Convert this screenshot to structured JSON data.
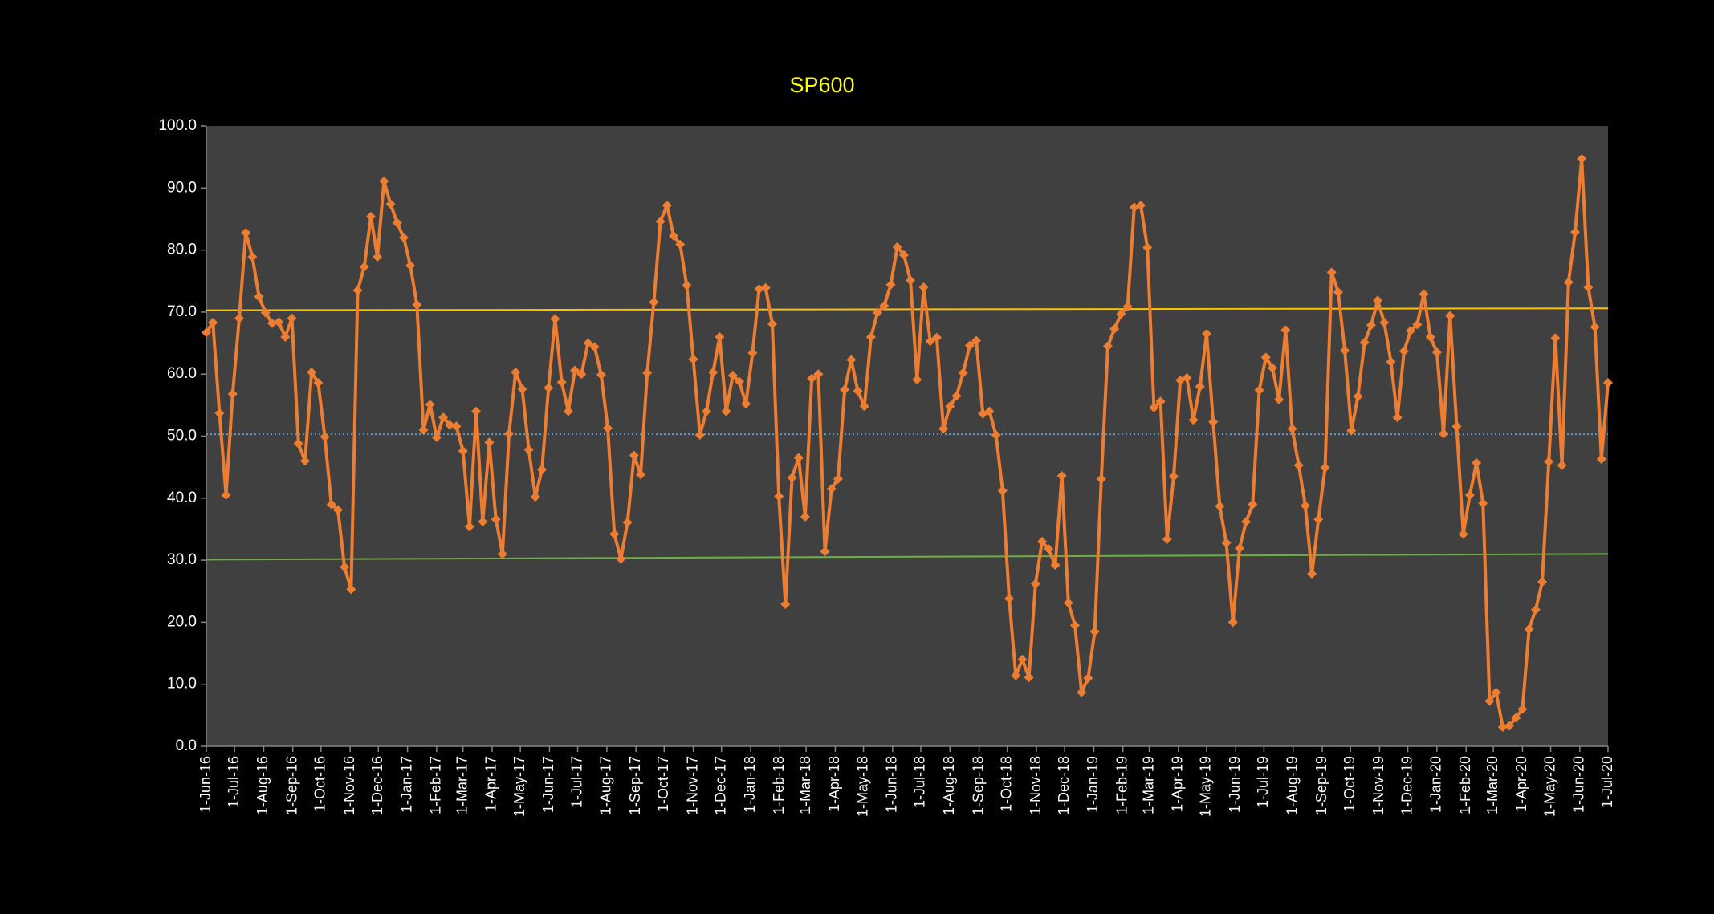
{
  "chart_data": {
    "type": "line",
    "title": "SP600",
    "title_color": "#ffff00",
    "background": "#404040",
    "x": [
      "2016-06-01",
      "2016-06-08",
      "2016-06-15",
      "2016-06-22",
      "2016-06-29",
      "2016-07-06",
      "2016-07-13",
      "2016-07-20",
      "2016-07-27",
      "2016-08-03",
      "2016-08-10",
      "2016-08-17",
      "2016-08-24",
      "2016-08-31",
      "2016-09-07",
      "2016-09-14",
      "2016-09-21",
      "2016-09-28",
      "2016-10-05",
      "2016-10-12",
      "2016-10-19",
      "2016-10-26",
      "2016-11-02",
      "2016-11-09",
      "2016-11-16",
      "2016-11-23",
      "2016-11-30",
      "2016-12-07",
      "2016-12-14",
      "2016-12-21",
      "2016-12-28",
      "2017-01-04",
      "2017-01-11",
      "2017-01-18",
      "2017-01-25",
      "2017-02-01",
      "2017-02-08",
      "2017-02-15",
      "2017-02-22",
      "2017-03-01",
      "2017-03-08",
      "2017-03-15",
      "2017-03-22",
      "2017-03-29",
      "2017-04-05",
      "2017-04-12",
      "2017-04-19",
      "2017-04-26",
      "2017-05-03",
      "2017-05-10",
      "2017-05-17",
      "2017-05-24",
      "2017-05-31",
      "2017-06-07",
      "2017-06-14",
      "2017-06-21",
      "2017-06-28",
      "2017-07-05",
      "2017-07-12",
      "2017-07-19",
      "2017-07-26",
      "2017-08-02",
      "2017-08-09",
      "2017-08-16",
      "2017-08-23",
      "2017-08-30",
      "2017-09-06",
      "2017-09-13",
      "2017-09-20",
      "2017-09-27",
      "2017-10-04",
      "2017-10-11",
      "2017-10-18",
      "2017-10-25",
      "2017-11-01",
      "2017-11-08",
      "2017-11-15",
      "2017-11-22",
      "2017-11-29",
      "2017-12-06",
      "2017-12-13",
      "2017-12-20",
      "2017-12-27",
      "2018-01-03",
      "2018-01-10",
      "2018-01-17",
      "2018-01-24",
      "2018-01-31",
      "2018-02-07",
      "2018-02-14",
      "2018-02-21",
      "2018-02-28",
      "2018-03-07",
      "2018-03-14",
      "2018-03-21",
      "2018-03-28",
      "2018-04-04",
      "2018-04-11",
      "2018-04-18",
      "2018-04-25",
      "2018-05-02",
      "2018-05-09",
      "2018-05-16",
      "2018-05-23",
      "2018-05-30",
      "2018-06-06",
      "2018-06-13",
      "2018-06-20",
      "2018-06-27",
      "2018-07-04",
      "2018-07-11",
      "2018-07-18",
      "2018-07-25",
      "2018-08-01",
      "2018-08-08",
      "2018-08-15",
      "2018-08-22",
      "2018-08-29",
      "2018-09-05",
      "2018-09-12",
      "2018-09-19",
      "2018-09-26",
      "2018-10-03",
      "2018-10-10",
      "2018-10-17",
      "2018-10-24",
      "2018-10-31",
      "2018-11-07",
      "2018-11-14",
      "2018-11-21",
      "2018-11-28",
      "2018-12-05",
      "2018-12-12",
      "2018-12-19",
      "2018-12-26",
      "2019-01-02",
      "2019-01-09",
      "2019-01-16",
      "2019-01-23",
      "2019-01-30",
      "2019-02-06",
      "2019-02-13",
      "2019-02-20",
      "2019-02-27",
      "2019-03-06",
      "2019-03-13",
      "2019-03-20",
      "2019-03-27",
      "2019-04-03",
      "2019-04-10",
      "2019-04-17",
      "2019-04-24",
      "2019-05-01",
      "2019-05-08",
      "2019-05-15",
      "2019-05-22",
      "2019-05-29",
      "2019-06-05",
      "2019-06-12",
      "2019-06-19",
      "2019-06-26",
      "2019-07-03",
      "2019-07-10",
      "2019-07-17",
      "2019-07-24",
      "2019-07-31",
      "2019-08-07",
      "2019-08-14",
      "2019-08-21",
      "2019-08-28",
      "2019-09-04",
      "2019-09-11",
      "2019-09-18",
      "2019-09-25",
      "2019-10-02",
      "2019-10-09",
      "2019-10-16",
      "2019-10-23",
      "2019-10-30",
      "2019-11-06",
      "2019-11-13",
      "2019-11-20",
      "2019-11-27",
      "2019-12-04",
      "2019-12-11",
      "2019-12-18",
      "2019-12-25",
      "2020-01-01",
      "2020-01-08",
      "2020-01-15",
      "2020-01-22",
      "2020-01-29",
      "2020-02-05",
      "2020-02-12",
      "2020-02-19",
      "2020-02-26",
      "2020-03-04",
      "2020-03-11",
      "2020-03-18",
      "2020-03-25",
      "2020-04-01",
      "2020-04-08",
      "2020-04-15",
      "2020-04-22",
      "2020-04-29",
      "2020-05-06",
      "2020-05-13",
      "2020-05-20",
      "2020-05-27",
      "2020-06-03",
      "2020-06-10",
      "2020-06-17",
      "2020-06-24",
      "2020-07-01"
    ],
    "series": [
      {
        "color": "#ed7d31",
        "values": [
          66.7,
          68.3,
          53.7,
          40.5,
          56.8,
          69.0,
          82.8,
          78.9,
          72.5,
          69.9,
          68.2,
          68.4,
          66.0,
          69.0,
          48.8,
          46.0,
          60.3,
          58.6,
          49.9,
          39.0,
          38.1,
          28.9,
          25.3,
          73.5,
          77.3,
          85.4,
          78.9,
          91.1,
          87.4,
          84.4,
          82.0,
          77.5,
          71.2,
          51.0,
          55.1,
          49.8,
          53.0,
          51.8,
          51.6,
          47.6,
          35.4,
          54.0,
          36.2,
          49.0,
          36.6,
          31.0,
          50.4,
          60.3,
          57.6,
          47.8,
          40.2,
          44.6,
          57.8,
          68.9,
          58.7,
          54.0,
          60.6,
          60.0,
          65.0,
          64.4,
          59.9,
          51.3,
          34.2,
          30.2,
          36.1,
          46.9,
          43.8,
          60.2,
          71.6,
          84.6,
          87.2,
          82.3,
          80.9,
          74.3,
          62.4,
          50.2,
          54.0,
          60.3,
          66.0,
          54.0,
          59.8,
          58.8,
          55.2,
          63.4,
          73.7,
          73.9,
          68.1,
          40.3,
          22.9,
          43.3,
          46.5,
          37.0,
          59.3,
          60.0,
          31.4,
          41.5,
          43.1,
          57.5,
          62.3,
          57.3,
          54.8,
          66.0,
          69.9,
          71.0,
          74.4,
          80.5,
          79.2,
          75.1,
          59.1,
          74.0,
          65.3,
          65.9,
          51.2,
          54.8,
          56.5,
          60.2,
          64.6,
          65.4,
          53.6,
          54.0,
          50.2,
          41.2,
          23.8,
          11.4,
          14.0,
          11.1,
          26.2,
          33.0,
          31.8,
          29.2,
          43.6,
          23.1,
          19.5,
          8.7,
          11.0,
          18.5,
          43.1,
          64.5,
          67.3,
          69.7,
          70.9,
          86.9,
          87.2,
          80.4,
          54.6,
          55.6,
          33.4,
          43.5,
          59.0,
          59.4,
          52.6,
          58.0,
          66.5,
          52.3,
          38.7,
          32.8,
          20.0,
          31.9,
          36.2,
          39.0,
          57.4,
          62.7,
          61.0,
          55.9,
          67.1,
          51.2,
          45.3,
          38.8,
          27.8,
          36.6,
          44.9,
          76.4,
          73.2,
          63.8,
          50.9,
          56.4,
          65.1,
          67.9,
          71.9,
          68.3,
          62.0,
          53.0,
          63.7,
          67.0,
          68.0,
          72.9,
          66.0,
          63.5,
          50.4,
          69.4,
          51.6,
          34.2,
          40.5,
          45.7,
          39.2,
          7.3,
          8.7,
          3.1,
          3.3,
          4.6,
          6.0,
          18.9,
          22.0,
          26.5,
          45.9,
          65.8,
          45.3,
          74.8,
          82.9,
          94.7,
          74.0,
          67.6,
          46.3,
          58.6
        ]
      }
    ],
    "lines": [
      {
        "color": "#ffc000",
        "values": [
          70.3,
          70.6
        ]
      },
      {
        "color": "#5b9bd5",
        "dashed": true,
        "values": [
          50.3,
          50.3
        ]
      },
      {
        "color": "#70ad47",
        "values": [
          30.1,
          31.0
        ]
      }
    ],
    "ylim": [
      0,
      100
    ],
    "yticks": [
      {
        "value": 0,
        "label": "0.0"
      },
      {
        "value": 10,
        "label": "10.0"
      },
      {
        "value": 20,
        "label": "20.0"
      },
      {
        "value": 30,
        "label": "30.0"
      },
      {
        "value": 40,
        "label": "40.0"
      },
      {
        "value": 50,
        "label": "50.0"
      },
      {
        "value": 60,
        "label": "60.0"
      },
      {
        "value": 70,
        "label": "70.0"
      },
      {
        "value": 80,
        "label": "80.0"
      },
      {
        "value": 90,
        "label": "90.0"
      },
      {
        "value": 100,
        "label": "100.0"
      }
    ],
    "xlim": [
      "2016-06-01",
      "2020-07-01"
    ],
    "xticks": [
      {
        "value": "2016-06-01",
        "label": "1-Jun-16"
      },
      {
        "value": "2016-07-01",
        "label": "1-Jul-16"
      },
      {
        "value": "2016-08-01",
        "label": "1-Aug-16"
      },
      {
        "value": "2016-09-01",
        "label": "1-Sep-16"
      },
      {
        "value": "2016-10-01",
        "label": "1-Oct-16"
      },
      {
        "value": "2016-11-01",
        "label": "1-Nov-16"
      },
      {
        "value": "2016-12-01",
        "label": "1-Dec-16"
      },
      {
        "value": "2017-01-01",
        "label": "1-Jan-17"
      },
      {
        "value": "2017-02-01",
        "label": "1-Feb-17"
      },
      {
        "value": "2017-03-01",
        "label": "1-Mar-17"
      },
      {
        "value": "2017-04-01",
        "label": "1-Apr-17"
      },
      {
        "value": "2017-05-01",
        "label": "1-May-17"
      },
      {
        "value": "2017-06-01",
        "label": "1-Jun-17"
      },
      {
        "value": "2017-07-01",
        "label": "1-Jul-17"
      },
      {
        "value": "2017-08-01",
        "label": "1-Aug-17"
      },
      {
        "value": "2017-09-01",
        "label": "1-Sep-17"
      },
      {
        "value": "2017-10-01",
        "label": "1-Oct-17"
      },
      {
        "value": "2017-11-01",
        "label": "1-Nov-17"
      },
      {
        "value": "2017-12-01",
        "label": "1-Dec-17"
      },
      {
        "value": "2018-01-01",
        "label": "1-Jan-18"
      },
      {
        "value": "2018-02-01",
        "label": "1-Feb-18"
      },
      {
        "value": "2018-03-01",
        "label": "1-Mar-18"
      },
      {
        "value": "2018-04-01",
        "label": "1-Apr-18"
      },
      {
        "value": "2018-05-01",
        "label": "1-May-18"
      },
      {
        "value": "2018-06-01",
        "label": "1-Jun-18"
      },
      {
        "value": "2018-07-01",
        "label": "1-Jul-18"
      },
      {
        "value": "2018-08-01",
        "label": "1-Aug-18"
      },
      {
        "value": "2018-09-01",
        "label": "1-Sep-18"
      },
      {
        "value": "2018-10-01",
        "label": "1-Oct-18"
      },
      {
        "value": "2018-11-01",
        "label": "1-Nov-18"
      },
      {
        "value": "2018-12-01",
        "label": "1-Dec-18"
      },
      {
        "value": "2019-01-01",
        "label": "1-Jan-19"
      },
      {
        "value": "2019-02-01",
        "label": "1-Feb-19"
      },
      {
        "value": "2019-03-01",
        "label": "1-Mar-19"
      },
      {
        "value": "2019-04-01",
        "label": "1-Apr-19"
      },
      {
        "value": "2019-05-01",
        "label": "1-May-19"
      },
      {
        "value": "2019-06-01",
        "label": "1-Jun-19"
      },
      {
        "value": "2019-07-01",
        "label": "1-Jul-19"
      },
      {
        "value": "2019-08-01",
        "label": "1-Aug-19"
      },
      {
        "value": "2019-09-01",
        "label": "1-Sep-19"
      },
      {
        "value": "2019-10-01",
        "label": "1-Oct-19"
      },
      {
        "value": "2019-11-01",
        "label": "1-Nov-19"
      },
      {
        "value": "2019-12-01",
        "label": "1-Dec-19"
      },
      {
        "value": "2020-01-01",
        "label": "1-Jan-20"
      },
      {
        "value": "2020-02-01",
        "label": "1-Feb-20"
      },
      {
        "value": "2020-03-01",
        "label": "1-Mar-20"
      },
      {
        "value": "2020-04-01",
        "label": "1-Apr-20"
      },
      {
        "value": "2020-05-01",
        "label": "1-May-20"
      },
      {
        "value": "2020-06-01",
        "label": "1-Jun-20"
      },
      {
        "value": "2020-07-01",
        "label": "1-Jul-20"
      }
    ],
    "grid": false,
    "legend": false
  }
}
